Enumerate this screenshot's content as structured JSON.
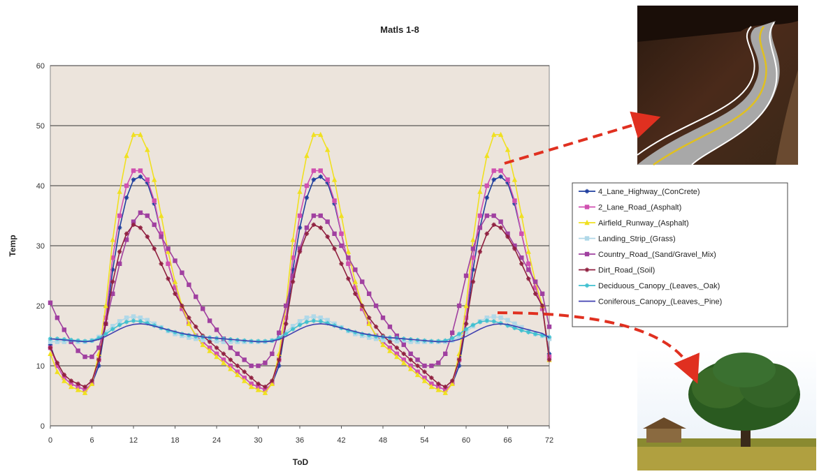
{
  "chart_data": {
    "type": "line",
    "title": "Matls 1-8",
    "xlabel": "ToD",
    "ylabel": "Temp",
    "xlim": [
      0,
      72
    ],
    "ylim": [
      0,
      60
    ],
    "xticks": [
      0,
      6,
      12,
      18,
      24,
      30,
      36,
      42,
      48,
      54,
      60,
      66,
      72
    ],
    "yticks": [
      0,
      10,
      20,
      30,
      40,
      50,
      60
    ],
    "grid": "horizontal",
    "legend": "right",
    "x": [
      0,
      1,
      2,
      3,
      4,
      5,
      6,
      7,
      8,
      9,
      10,
      11,
      12,
      13,
      14,
      15,
      16,
      17,
      18,
      19,
      20,
      21,
      22,
      23,
      24,
      25,
      26,
      27,
      28,
      29,
      30,
      31,
      32,
      33,
      34,
      35,
      36,
      37,
      38,
      39,
      40,
      41,
      42,
      43,
      44,
      45,
      46,
      47,
      48,
      49,
      50,
      51,
      52,
      53,
      54,
      55,
      56,
      57,
      58,
      59,
      60,
      61,
      62,
      63,
      64,
      65,
      66,
      67,
      68,
      69,
      70,
      71,
      72
    ],
    "series": [
      {
        "name": "4_Lane_Highway_(ConCrete)",
        "color": "#1f3f9f",
        "marker": "star",
        "values": [
          13.5,
          10,
          8,
          7,
          6.5,
          6,
          7,
          10,
          17,
          26,
          33,
          38,
          41,
          41.5,
          40.5,
          37,
          32,
          27,
          23,
          19.5,
          17,
          15,
          14,
          13,
          12,
          11,
          10,
          9,
          8,
          7,
          6.5,
          6,
          7,
          10,
          17,
          26,
          33,
          38,
          41,
          41.5,
          40.5,
          37,
          32,
          27,
          23,
          19.5,
          17,
          15,
          14,
          13,
          12,
          11,
          10,
          9,
          8,
          7,
          6.5,
          6,
          7,
          10,
          17,
          26,
          33,
          38,
          41,
          41.5,
          40.5,
          37,
          32,
          27,
          23,
          19.5,
          12
        ]
      },
      {
        "name": "2_Lane_Road_(Asphalt)",
        "color": "#d050b0",
        "marker": "square",
        "values": [
          13,
          10,
          8,
          7,
          6.5,
          6,
          7,
          11,
          18,
          28,
          35,
          40,
          42.5,
          42.5,
          41,
          37.5,
          32,
          27,
          23,
          19.5,
          17,
          15,
          14,
          13,
          12,
          11,
          10,
          9,
          8,
          7,
          6.5,
          6,
          7,
          11,
          18,
          28,
          35,
          40,
          42.5,
          42.5,
          41,
          37.5,
          32,
          27,
          23,
          19.5,
          17,
          15,
          14,
          13,
          12,
          11,
          10,
          9,
          8,
          7,
          6.5,
          6,
          7,
          11,
          18,
          28,
          35,
          40,
          42.5,
          42.5,
          41,
          37.5,
          32,
          27,
          23,
          19.5,
          11.5
        ]
      },
      {
        "name": "Airfield_Runway_(Asphalt)",
        "color": "#f0e020",
        "marker": "triangle",
        "values": [
          12,
          9,
          7.5,
          6.5,
          6,
          5.5,
          7,
          12,
          20,
          31,
          39,
          45,
          48.5,
          48.5,
          46,
          41,
          35,
          29,
          24,
          20,
          17,
          15,
          13.5,
          12.5,
          11.5,
          10.5,
          9.5,
          8.5,
          7.5,
          6.5,
          6,
          5.5,
          7,
          12,
          20,
          31,
          39,
          45,
          48.5,
          48.5,
          46,
          41,
          35,
          29,
          24,
          20,
          17,
          15,
          13.5,
          12.5,
          11.5,
          10.5,
          9.5,
          8.5,
          7.5,
          6.5,
          6,
          5.5,
          7,
          12,
          20,
          31,
          39,
          45,
          48.5,
          48.5,
          46,
          41,
          35,
          29,
          24,
          20,
          11
        ]
      },
      {
        "name": "Landing_Strip_(Grass)",
        "color": "#b0d8e8",
        "marker": "square",
        "values": [
          14,
          14,
          14,
          14,
          14,
          14,
          14.2,
          14.8,
          15.6,
          16.6,
          17.4,
          18,
          18.2,
          18,
          17.6,
          17,
          16.4,
          15.8,
          15.3,
          15,
          14.7,
          14.5,
          14.3,
          14.2,
          14.1,
          14,
          14,
          14,
          14,
          14,
          14,
          14,
          14.2,
          14.8,
          15.6,
          16.6,
          17.4,
          18,
          18.2,
          18,
          17.6,
          17,
          16.4,
          15.8,
          15.3,
          15,
          14.7,
          14.5,
          14.3,
          14.2,
          14.1,
          14,
          14,
          14,
          14,
          14,
          14,
          14,
          14.2,
          14.8,
          15.6,
          16.6,
          17.4,
          18,
          18.2,
          18,
          17.6,
          17,
          16.4,
          15.8,
          15.3,
          15,
          14.5
        ]
      },
      {
        "name": "Country_Road_(Sand/Gravel_Mix)",
        "color": "#a040a0",
        "marker": "square",
        "values": [
          20.5,
          18,
          16,
          14,
          12.5,
          11.5,
          11.5,
          13,
          17,
          22,
          27,
          31,
          34,
          35.5,
          35,
          33.5,
          31.5,
          29.5,
          27.5,
          25.5,
          23.5,
          21.5,
          19.5,
          17.5,
          16,
          14.5,
          13,
          12,
          11,
          10,
          10,
          10.5,
          12,
          15.5,
          20,
          25,
          29.5,
          33,
          35,
          35,
          34,
          32,
          30,
          28,
          26,
          24,
          22,
          20,
          18,
          16.5,
          15,
          13.5,
          12,
          11,
          10,
          10,
          10.5,
          12,
          15.5,
          20,
          25,
          29.5,
          33,
          35,
          35,
          34,
          32,
          30,
          28,
          26,
          24,
          22,
          16.5
        ]
      },
      {
        "name": "Dirt_Road_(Soil)",
        "color": "#902040",
        "marker": "star",
        "values": [
          13,
          10.5,
          8.5,
          7.5,
          7,
          6.5,
          7.5,
          11,
          17,
          24,
          29,
          32,
          33.5,
          33,
          31.5,
          29.5,
          27,
          24.5,
          22,
          20,
          18,
          16.5,
          15,
          14,
          13,
          12,
          11,
          10,
          9,
          8,
          7,
          6.5,
          7.5,
          11,
          17,
          24,
          29,
          32,
          33.5,
          33,
          31.5,
          29.5,
          27,
          24.5,
          22,
          20,
          18,
          16.5,
          15,
          14,
          13,
          12,
          11,
          10,
          9,
          8,
          7,
          6.5,
          7.5,
          11,
          17,
          24,
          29,
          32,
          33.5,
          33,
          31.5,
          29.5,
          27,
          24.5,
          22,
          20,
          11
        ]
      },
      {
        "name": "Deciduous_Canopy_(Leaves,_Oak)",
        "color": "#40c0d0",
        "marker": "star",
        "values": [
          14.5,
          14.5,
          14.4,
          14.3,
          14.2,
          14.1,
          14.2,
          14.6,
          15.3,
          16.1,
          16.8,
          17.3,
          17.5,
          17.4,
          17.1,
          16.7,
          16.3,
          15.9,
          15.6,
          15.3,
          15.1,
          14.9,
          14.8,
          14.7,
          14.6,
          14.5,
          14.4,
          14.3,
          14.2,
          14.1,
          14.1,
          14.1,
          14.2,
          14.6,
          15.3,
          16.1,
          16.8,
          17.3,
          17.5,
          17.4,
          17.1,
          16.7,
          16.3,
          15.9,
          15.6,
          15.3,
          15.1,
          14.9,
          14.8,
          14.7,
          14.6,
          14.5,
          14.4,
          14.3,
          14.2,
          14.1,
          14.1,
          14.2,
          14.6,
          15.3,
          16.1,
          16.8,
          17.3,
          17.5,
          17.4,
          17.1,
          16.7,
          16.3,
          15.9,
          15.6,
          15.3,
          15.1,
          14.8
        ]
      },
      {
        "name": "Coniferous_Canopy_(Leaves,_Pine)",
        "color": "#4040b0",
        "marker": "none",
        "values": [
          14.5,
          14.4,
          14.3,
          14.2,
          14.1,
          14,
          14.1,
          14.4,
          14.9,
          15.5,
          16.1,
          16.6,
          16.9,
          17,
          16.9,
          16.6,
          16.3,
          16,
          15.7,
          15.4,
          15.2,
          15,
          14.8,
          14.7,
          14.6,
          14.5,
          14.4,
          14.3,
          14.2,
          14.1,
          14,
          14,
          14.1,
          14.4,
          14.9,
          15.5,
          16.1,
          16.6,
          16.9,
          17,
          16.9,
          16.6,
          16.3,
          16,
          15.7,
          15.4,
          15.2,
          15,
          14.8,
          14.7,
          14.6,
          14.5,
          14.4,
          14.3,
          14.2,
          14.1,
          14,
          14,
          14.1,
          14.4,
          14.9,
          15.5,
          16.1,
          16.6,
          16.9,
          17,
          16.9,
          16.6,
          16.3,
          16,
          15.7,
          15.4,
          14.7
        ]
      }
    ]
  },
  "legend_entries": [
    "4_Lane_Highway_(ConCrete)",
    "2_Lane_Road_(Asphalt)",
    "Airfield_Runway_(Asphalt)",
    "Landing_Strip_(Grass)",
    "Country_Road_(Sand/Gravel_Mix)",
    "Dirt_Road_(Soil)",
    "Deciduous_Canopy_(Leaves,_Oak)",
    "Coniferous_Canopy_(Leaves,_Pine)"
  ],
  "colors": {
    "plot_bg": "#ece4dc",
    "grid": "#333333",
    "arrow": "#e03020"
  },
  "icons": {
    "road_photo": "winding-road-icon",
    "tree_photo": "tree-icon"
  }
}
